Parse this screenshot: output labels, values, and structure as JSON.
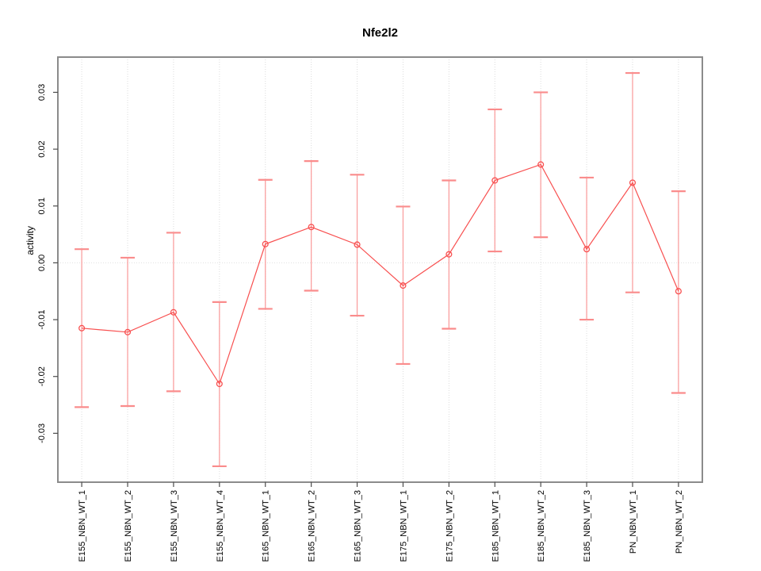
{
  "page": {
    "background": "#ffffff"
  },
  "chart_data": {
    "type": "line",
    "title": "Nfe2l2",
    "xlabel": "",
    "ylabel": "activity",
    "legend": "none",
    "grid": {
      "vertical_category_gridlines": "dotted",
      "zero_line": "dotted"
    },
    "categories": [
      "E155_NBN_WT_1",
      "E155_NBN_WT_2",
      "E155_NBN_WT_3",
      "E155_NBN_WT_4",
      "E165_NBN_WT_1",
      "E165_NBN_WT_2",
      "E165_NBN_WT_3",
      "E175_NBN_WT_1",
      "E175_NBN_WT_2",
      "E185_NBN_WT_1",
      "E185_NBN_WT_2",
      "E185_NBN_WT_3",
      "PN_NBN_WT_1",
      "PN_NBN_WT_2"
    ],
    "series": [
      {
        "name": "activity",
        "values": [
          -0.0115,
          -0.0122,
          -0.0087,
          -0.0213,
          0.0033,
          0.0063,
          0.0032,
          -0.004,
          0.0015,
          0.0145,
          0.0173,
          0.0024,
          0.0141,
          -0.005
        ],
        "error_upper": [
          0.0024,
          0.0009,
          0.0053,
          -0.0069,
          0.0146,
          0.0179,
          0.0155,
          0.0099,
          0.0145,
          0.027,
          0.03,
          0.015,
          0.0334,
          0.0126
        ],
        "error_lower": [
          -0.0254,
          -0.0252,
          -0.0226,
          -0.0358,
          -0.0081,
          -0.0049,
          -0.0093,
          -0.0178,
          -0.0116,
          0.002,
          0.0045,
          -0.01,
          -0.0052,
          -0.0229
        ]
      }
    ],
    "yticks": [
      -0.03,
      -0.02,
      -0.01,
      0,
      0.01,
      0.02,
      0.03
    ],
    "ytick_labels": [
      "-0.03",
      "-0.02",
      "-0.01",
      "0.00",
      "0.01",
      "0.02",
      "0.03"
    ],
    "ylim": [
      -0.0386,
      0.0362
    ],
    "colors": {
      "line": "#f85050",
      "point": "#f85050",
      "error_bar": "#faa0a0",
      "error_cap": "#fa8c8c",
      "box": "#8b8b8b",
      "tick": "#4d4d4d",
      "gridline": "#dcdcdc",
      "zero_line": "#e0e0e0",
      "text": "#000000"
    }
  }
}
